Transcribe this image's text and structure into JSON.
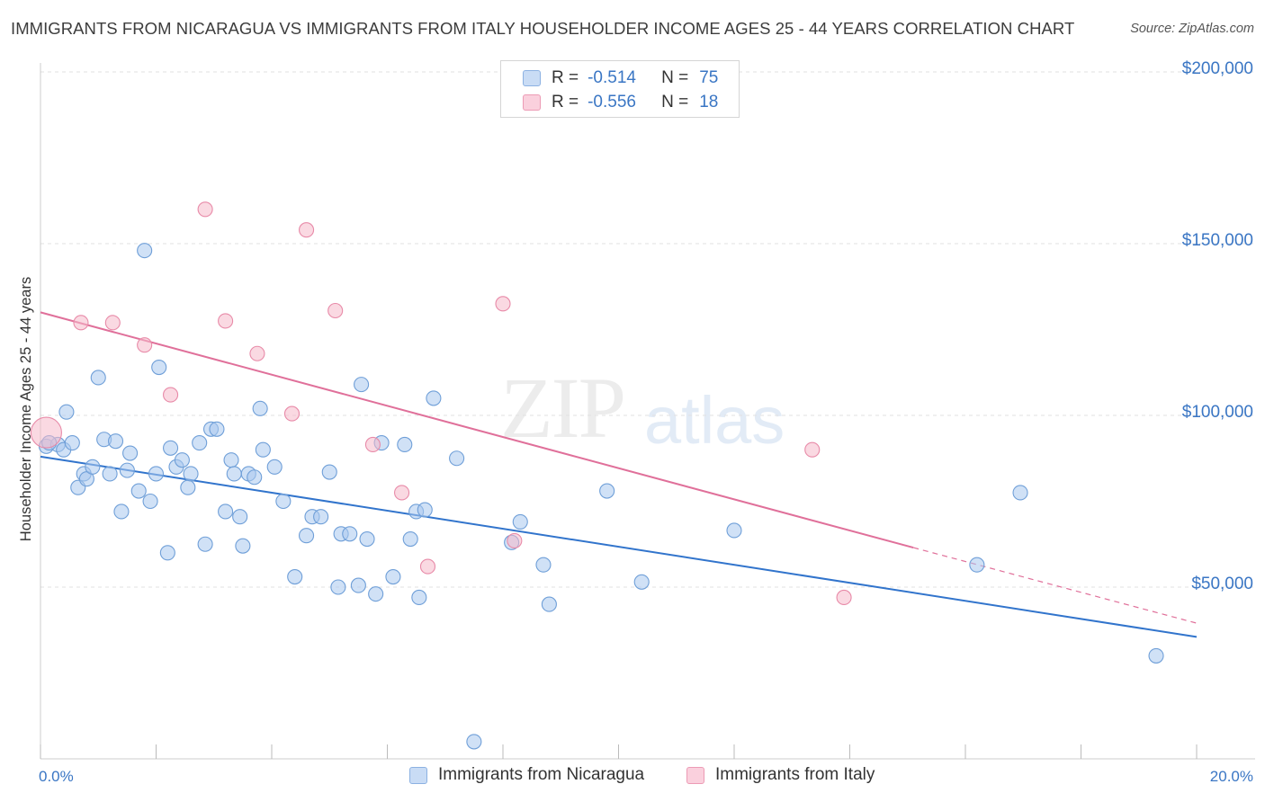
{
  "header": {
    "title": "IMMIGRANTS FROM NICARAGUA VS IMMIGRANTS FROM ITALY HOUSEHOLDER INCOME AGES 25 - 44 YEARS CORRELATION CHART",
    "source": "Source: ZipAtlas.com"
  },
  "watermark": {
    "part1": "ZIP",
    "part2": "atlas"
  },
  "legend": {
    "rows": [
      {
        "r_label": "R =",
        "r_value": "-0.514",
        "n_label": "N =",
        "n_value": "75"
      },
      {
        "r_label": "R =",
        "r_value": "-0.556",
        "n_label": "N =",
        "n_value": "18"
      }
    ]
  },
  "bottom_legend": {
    "items": [
      {
        "label": "Immigrants from Nicaragua"
      },
      {
        "label": "Immigrants from Italy"
      }
    ]
  },
  "colors": {
    "blue_fill": "#a9c8ee",
    "blue_stroke": "#6f9fd8",
    "blue_line": "#3174cc",
    "pink_fill": "#f6b9cb",
    "pink_stroke": "#e88aa8",
    "pink_line": "#e0709a",
    "grid": "#e2e2e2",
    "axis_text": "#3a76c4"
  },
  "chart_data": {
    "type": "scatter",
    "title": "IMMIGRANTS FROM NICARAGUA VS IMMIGRANTS FROM ITALY HOUSEHOLDER INCOME AGES 25 - 44 YEARS CORRELATION CHART",
    "xlabel": "",
    "ylabel": "Householder Income Ages 25 - 44 years",
    "xlim": [
      0,
      20
    ],
    "ylim": [
      0,
      210000
    ],
    "x_tick_labels": [
      "0.0%",
      "20.0%"
    ],
    "y_ticks": [
      50000,
      100000,
      150000,
      200000
    ],
    "y_tick_labels": [
      "$50,000",
      "$100,000",
      "$150,000",
      "$200,000"
    ],
    "grid": "horizontal dashed",
    "legend_position": "top-center",
    "series": [
      {
        "name": "Immigrants from Nicaragua",
        "R": -0.514,
        "N": 75,
        "trend": {
          "x": [
            0,
            20
          ],
          "y": [
            88000,
            35500
          ]
        },
        "points": [
          [
            0.1,
            91000
          ],
          [
            0.3,
            91500
          ],
          [
            0.4,
            90000
          ],
          [
            0.45,
            101000
          ],
          [
            0.55,
            92000
          ],
          [
            0.65,
            79000
          ],
          [
            0.75,
            83000
          ],
          [
            0.8,
            81500
          ],
          [
            0.9,
            85000
          ],
          [
            1.0,
            111000
          ],
          [
            1.1,
            93000
          ],
          [
            1.2,
            83000
          ],
          [
            1.3,
            92500
          ],
          [
            1.4,
            72000
          ],
          [
            1.5,
            84000
          ],
          [
            1.55,
            89000
          ],
          [
            1.7,
            78000
          ],
          [
            1.8,
            148000
          ],
          [
            1.9,
            75000
          ],
          [
            2.0,
            83000
          ],
          [
            2.05,
            114000
          ],
          [
            2.2,
            60000
          ],
          [
            2.25,
            90500
          ],
          [
            2.35,
            85000
          ],
          [
            2.45,
            87000
          ],
          [
            2.55,
            79000
          ],
          [
            2.6,
            83000
          ],
          [
            2.75,
            92000
          ],
          [
            2.85,
            62500
          ],
          [
            2.95,
            96000
          ],
          [
            3.05,
            96000
          ],
          [
            3.2,
            72000
          ],
          [
            3.3,
            87000
          ],
          [
            3.35,
            83000
          ],
          [
            3.45,
            70500
          ],
          [
            3.5,
            62000
          ],
          [
            3.6,
            83000
          ],
          [
            3.7,
            82000
          ],
          [
            3.8,
            102000
          ],
          [
            3.85,
            90000
          ],
          [
            4.05,
            85000
          ],
          [
            4.2,
            75000
          ],
          [
            4.4,
            53000
          ],
          [
            4.6,
            65000
          ],
          [
            4.7,
            70500
          ],
          [
            4.85,
            70500
          ],
          [
            5.0,
            83500
          ],
          [
            5.15,
            50000
          ],
          [
            5.2,
            65500
          ],
          [
            5.35,
            65500
          ],
          [
            5.5,
            50500
          ],
          [
            5.55,
            109000
          ],
          [
            5.65,
            64000
          ],
          [
            5.8,
            48000
          ],
          [
            5.9,
            92000
          ],
          [
            6.1,
            53000
          ],
          [
            6.3,
            91500
          ],
          [
            6.4,
            64000
          ],
          [
            6.5,
            72000
          ],
          [
            6.55,
            47000
          ],
          [
            6.65,
            72500
          ],
          [
            6.8,
            105000
          ],
          [
            7.2,
            87500
          ],
          [
            7.5,
            5000
          ],
          [
            8.15,
            63000
          ],
          [
            8.3,
            69000
          ],
          [
            8.7,
            56500
          ],
          [
            8.8,
            45000
          ],
          [
            9.8,
            78000
          ],
          [
            10.4,
            51500
          ],
          [
            12.0,
            66500
          ],
          [
            16.2,
            56500
          ],
          [
            16.95,
            77500
          ],
          [
            19.3,
            30000
          ],
          [
            0.15,
            92000
          ]
        ]
      },
      {
        "name": "Immigrants from Italy",
        "R": -0.556,
        "N": 18,
        "trend": {
          "x": [
            0,
            15.1
          ],
          "y": [
            130000,
            61500
          ]
        },
        "trend_dashed": {
          "x": [
            15.1,
            20
          ],
          "y": [
            61500,
            39500
          ]
        },
        "points": [
          [
            0.1,
            95000
          ],
          [
            0.7,
            127000
          ],
          [
            1.25,
            127000
          ],
          [
            1.8,
            120500
          ],
          [
            2.25,
            106000
          ],
          [
            2.85,
            160000
          ],
          [
            3.2,
            127500
          ],
          [
            3.75,
            118000
          ],
          [
            4.35,
            100500
          ],
          [
            4.6,
            154000
          ],
          [
            5.1,
            130500
          ],
          [
            5.75,
            91500
          ],
          [
            6.25,
            77500
          ],
          [
            6.7,
            56000
          ],
          [
            8.0,
            132500
          ],
          [
            8.2,
            63500
          ],
          [
            13.35,
            90000
          ],
          [
            13.9,
            47000
          ]
        ]
      }
    ]
  }
}
